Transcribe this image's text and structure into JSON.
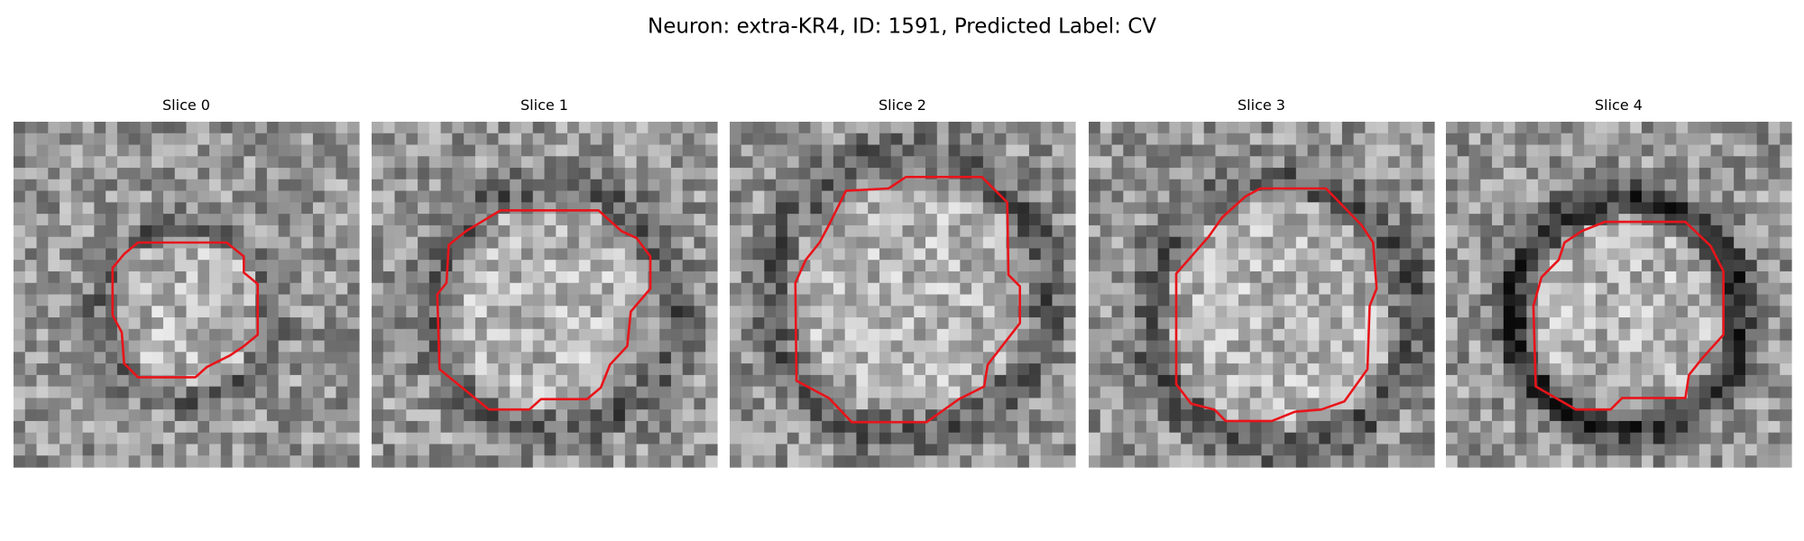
{
  "title": "Neuron: extra-KR4, ID: 1591, Predicted Label: CV",
  "panels": [
    {
      "title": "Slice 0"
    },
    {
      "title": "Slice 1"
    },
    {
      "title": "Slice 2"
    },
    {
      "title": "Slice 3"
    },
    {
      "title": "Slice 4"
    }
  ]
}
